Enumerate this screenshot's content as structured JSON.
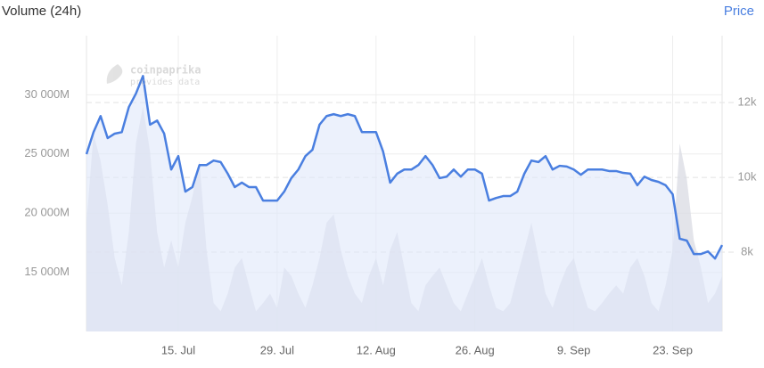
{
  "chart_data": {
    "type": "line",
    "watermark": {
      "brand": "coinpaprika",
      "note": "provides data"
    },
    "categories": [
      null,
      null,
      null,
      null,
      null,
      null,
      null,
      null,
      null,
      null,
      null,
      null,
      null,
      "15. Jul",
      null,
      null,
      null,
      null,
      null,
      null,
      null,
      null,
      null,
      null,
      null,
      null,
      null,
      "29. Jul",
      null,
      null,
      null,
      null,
      null,
      null,
      null,
      null,
      null,
      null,
      null,
      null,
      null,
      "12. Aug",
      null,
      null,
      null,
      null,
      null,
      null,
      null,
      null,
      null,
      null,
      null,
      null,
      null,
      "26. Aug",
      null,
      null,
      null,
      null,
      null,
      null,
      null,
      null,
      null,
      null,
      null,
      null,
      null,
      "9. Sep",
      null,
      null,
      null,
      null,
      null,
      null,
      null,
      null,
      null,
      null,
      null,
      null,
      null,
      "23. Sep",
      null,
      null,
      null,
      null,
      null,
      null,
      null
    ],
    "series": [
      {
        "name": "Volume (24h)",
        "kind": "area",
        "color": "#d9dbe3",
        "values": [
          19200,
          26700,
          24400,
          20700,
          16200,
          13900,
          18400,
          25900,
          29000,
          25200,
          18400,
          15400,
          17700,
          15400,
          19200,
          21400,
          24400,
          16900,
          12400,
          11700,
          13200,
          15400,
          16200,
          13900,
          11700,
          12400,
          13200,
          12000,
          15400,
          14700,
          13200,
          12000,
          13900,
          16200,
          19200,
          19900,
          16900,
          14700,
          13200,
          12400,
          14700,
          16200,
          13900,
          16900,
          18400,
          15400,
          12400,
          11700,
          13900,
          14700,
          15400,
          13900,
          12400,
          11700,
          13200,
          14700,
          16200,
          13900,
          12000,
          11700,
          12400,
          14700,
          16900,
          19200,
          16200,
          13200,
          12000,
          13900,
          15400,
          16200,
          13900,
          12000,
          11700,
          12400,
          13200,
          13900,
          13200,
          15400,
          16200,
          14700,
          12400,
          11700,
          13900,
          16900,
          25900,
          22900,
          17700,
          15400,
          12400,
          13200,
          14700
        ]
      },
      {
        "name": "Price",
        "kind": "line",
        "axis": "y2",
        "color": "#4a7fe0",
        "values": [
          10620,
          11210,
          11640,
          11050,
          11170,
          11210,
          11880,
          12240,
          12710,
          11410,
          11520,
          11170,
          10210,
          10570,
          9620,
          9740,
          10330,
          10330,
          10450,
          10410,
          10100,
          9740,
          9860,
          9740,
          9740,
          9380,
          9380,
          9380,
          9620,
          9980,
          10210,
          10570,
          10740,
          11410,
          11640,
          11690,
          11640,
          11690,
          11640,
          11210,
          11210,
          11210,
          10690,
          9860,
          10100,
          10210,
          10210,
          10330,
          10570,
          10330,
          9980,
          10020,
          10210,
          10020,
          10210,
          10210,
          10100,
          9380,
          9450,
          9500,
          9500,
          9620,
          10100,
          10450,
          10410,
          10570,
          10210,
          10310,
          10290,
          10210,
          10070,
          10210,
          10210,
          10210,
          10170,
          10170,
          10120,
          10100,
          9790,
          10020,
          9930,
          9880,
          9790,
          9550,
          8360,
          8310,
          7950,
          7950,
          8020,
          7830,
          8190
        ]
      }
    ],
    "ylim": [
      10000,
      35000
    ],
    "yticks": [
      {
        "value": 15000,
        "label": "15 000M"
      },
      {
        "value": 20000,
        "label": "20 000M"
      },
      {
        "value": 25000,
        "label": "25 000M"
      },
      {
        "value": 30000,
        "label": "30 000M"
      }
    ],
    "y2lim": [
      5880,
      13790
    ],
    "y2ticks": [
      {
        "value": 8000,
        "label": "8k"
      },
      {
        "value": 10000,
        "label": "10k"
      },
      {
        "value": 12000,
        "label": "12k"
      }
    ],
    "grid": true
  }
}
